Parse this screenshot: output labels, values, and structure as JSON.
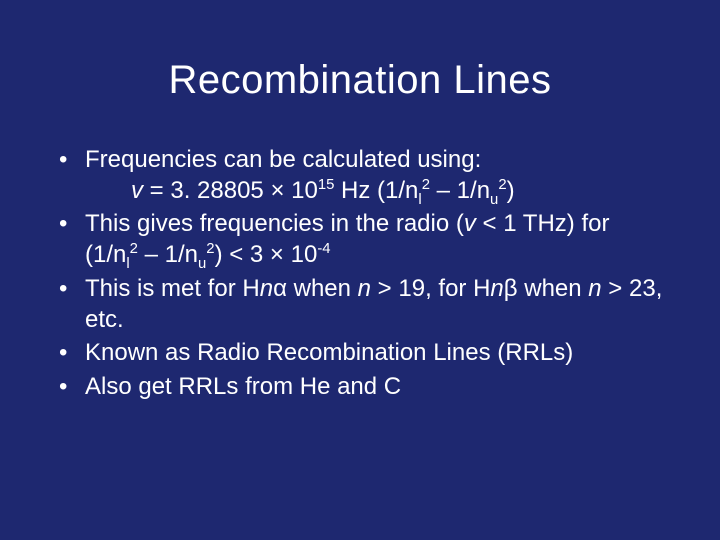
{
  "background_color": "#1e2870",
  "text_color": "#ffffff",
  "title": {
    "text": "Recombination Lines",
    "fontsize": 40,
    "align": "center"
  },
  "bullets": {
    "fontsize": 24,
    "items": [
      {
        "line1": "Frequencies can be calculated using:",
        "line2_html": "<span class=\"ital\">v</span> = 3. 28805 × 10<sup>15</sup> Hz (1/n<sub>l</sub><sup>2</sup> – 1/n<sub>u</sub><sup>2</sup>)"
      },
      {
        "html": "This gives frequencies in the radio (<span class=\"ital\">v</span> &lt; 1 THz) for (1/n<sub>l</sub><sup>2</sup> – 1/n<sub>u</sub><sup>2</sup>) &lt; 3 × 10<sup>-4</sup>"
      },
      {
        "html": "This is met for H<span class=\"ital\">n</span>α when <span class=\"ital\">n</span> &gt; 19, for H<span class=\"ital\">n</span>β when <span class=\"ital\">n</span> &gt; 23, etc."
      },
      {
        "html": "Known as Radio Recombination Lines (RRLs)"
      },
      {
        "html": "Also get RRLs from He and C"
      }
    ]
  }
}
